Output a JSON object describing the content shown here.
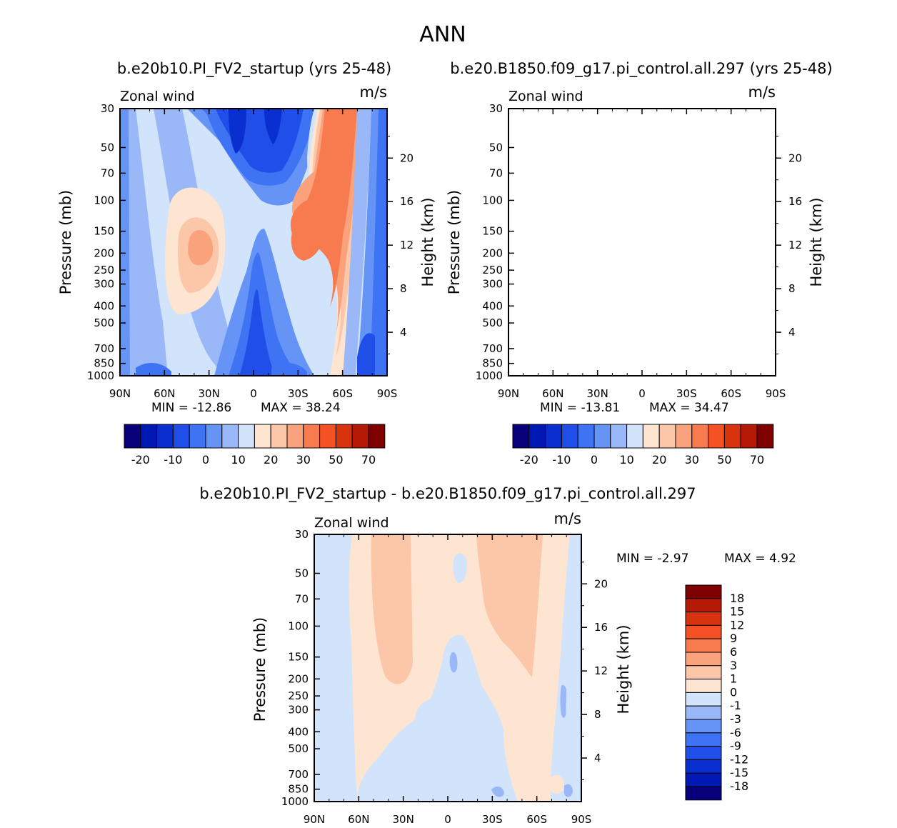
{
  "page_title": "ANN",
  "chart_data": [
    {
      "type": "heatmap",
      "subtype": "filled-contour",
      "title": "b.e20b10.PI_FV2_startup (yrs 25-48)",
      "variable": "Zonal wind",
      "units": "m/s",
      "ylabel": "Pressure (mb)",
      "ylabel_right": "Height (km)",
      "x_ticks": [
        "90N",
        "60N",
        "30N",
        "0",
        "30S",
        "60S",
        "90S"
      ],
      "y_ticks": [
        "30",
        "50",
        "70",
        "100",
        "150",
        "200",
        "250",
        "300",
        "400",
        "500",
        "700",
        "850",
        "1000"
      ],
      "height_ticks": [
        "20",
        "16",
        "12",
        "8",
        "4"
      ],
      "min_label": "MIN =  -12.86",
      "max_label": "MAX =   38.24",
      "min": -12.86,
      "max": 38.24,
      "colorbar_labels": [
        "-20",
        "-10",
        "0",
        "10",
        "20",
        "30",
        "50",
        "70"
      ]
    },
    {
      "type": "heatmap",
      "subtype": "filled-contour",
      "title": "b.e20.B1850.f09_g17.pi_control.all.297 (yrs 25-48)",
      "variable": "Zonal wind",
      "units": "m/s",
      "ylabel": "Pressure (mb)",
      "ylabel_right": "Height (km)",
      "x_ticks": [
        "90N",
        "60N",
        "30N",
        "0",
        "30S",
        "60S",
        "90S"
      ],
      "y_ticks": [
        "30",
        "50",
        "70",
        "100",
        "150",
        "200",
        "250",
        "300",
        "400",
        "500",
        "700",
        "850",
        "1000"
      ],
      "height_ticks": [
        "20",
        "16",
        "12",
        "8",
        "4"
      ],
      "min_label": "MIN =  -13.81",
      "max_label": "MAX =   34.47",
      "min": -13.81,
      "max": 34.47,
      "colorbar_labels": [
        "-20",
        "-10",
        "0",
        "10",
        "20",
        "30",
        "50",
        "70"
      ]
    },
    {
      "type": "heatmap",
      "subtype": "filled-contour difference",
      "title": "b.e20b10.PI_FV2_startup - b.e20.B1850.f09_g17.pi_control.all.297",
      "variable": "Zonal wind",
      "units": "m/s",
      "ylabel": "Pressure (mb)",
      "ylabel_right": "Height (km)",
      "x_ticks": [
        "90N",
        "60N",
        "30N",
        "0",
        "30S",
        "60S",
        "90S"
      ],
      "y_ticks": [
        "30",
        "50",
        "70",
        "100",
        "150",
        "200",
        "250",
        "300",
        "400",
        "500",
        "700",
        "850",
        "1000"
      ],
      "height_ticks": [
        "20",
        "16",
        "12",
        "8",
        "4"
      ],
      "min_label": "MIN =   -2.97",
      "max_label": "MAX =    4.92",
      "min": -2.97,
      "max": 4.92,
      "colorbar_labels": [
        "18",
        "15",
        "12",
        "9",
        "6",
        "3",
        "1",
        "0",
        "-1",
        "-3",
        "-6",
        "-9",
        "-12",
        "-15",
        "-18"
      ]
    }
  ],
  "colors": {
    "main_palette": [
      "#08007a",
      "#0018b4",
      "#0a2fd0",
      "#1f4fe8",
      "#3e73f3",
      "#6694f6",
      "#9ab8f7",
      "#d1e4fb",
      "#fde5d2",
      "#fcc6a8",
      "#f9a27c",
      "#f77b4f",
      "#f45224",
      "#d8330f",
      "#b41a05",
      "#800000"
    ],
    "diff_palette": [
      "#800000",
      "#b41a05",
      "#d8330f",
      "#f45224",
      "#f77b4f",
      "#f9a27c",
      "#fcc6a8",
      "#fde5d2",
      "#d1e4fb",
      "#9ab8f7",
      "#6694f6",
      "#3e73f3",
      "#1f4fe8",
      "#0a2fd0",
      "#0018b4",
      "#08007a"
    ]
  }
}
